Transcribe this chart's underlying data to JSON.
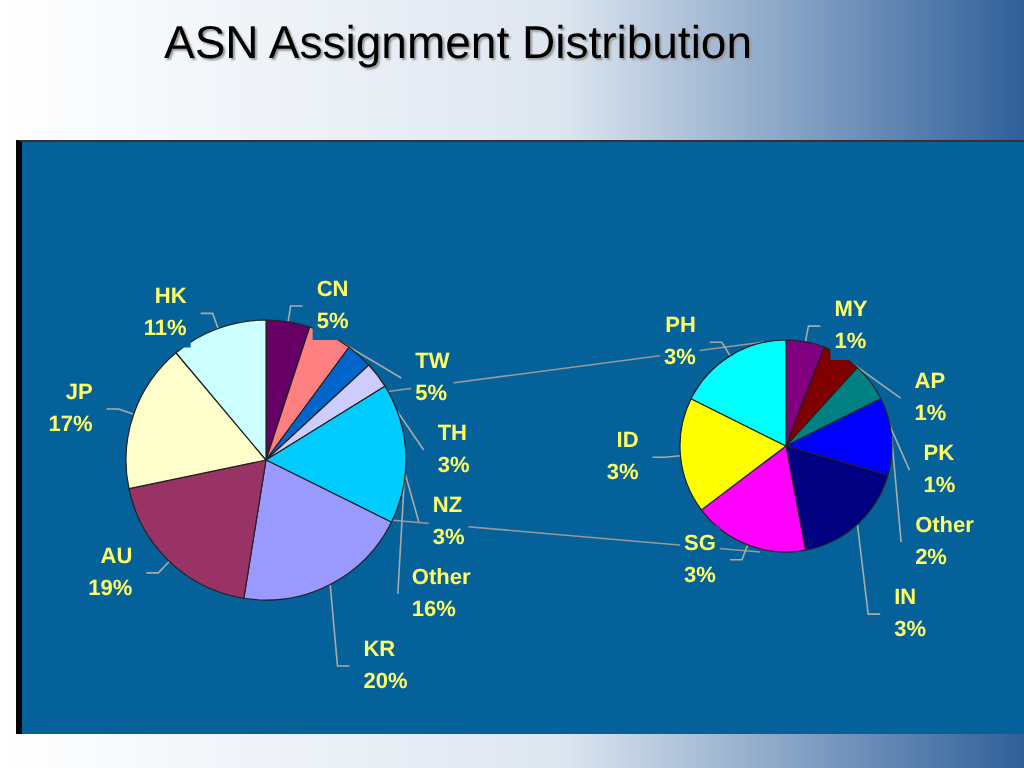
{
  "chart_data": [
    {
      "type": "pie",
      "title": "ASN Assignment Distribution",
      "categories": [
        "CN",
        "TW",
        "TH",
        "NZ",
        "Other",
        "KR",
        "AU",
        "JP",
        "HK"
      ],
      "values": [
        5,
        5,
        3,
        3,
        16,
        20,
        19,
        17,
        11
      ],
      "value_labels": [
        "5%",
        "5%",
        "3%",
        "3%",
        "16%",
        "20%",
        "19%",
        "17%",
        "11%"
      ],
      "colors": [
        "#660066",
        "#ff8080",
        "#0066cc",
        "#ccccff",
        "#00ccff",
        "#9999ff",
        "#993366",
        "#ffffcc",
        "#ccffff"
      ],
      "legend": false
    },
    {
      "type": "pie",
      "categories": [
        "MY",
        "AP",
        "PK",
        "Other",
        "IN",
        "SG",
        "ID",
        "PH"
      ],
      "values": [
        1,
        1,
        1,
        2,
        3,
        3,
        3,
        3
      ],
      "value_labels": [
        "1%",
        "1%",
        "1%",
        "2%",
        "3%",
        "3%",
        "3%",
        "3%"
      ],
      "colors": [
        "#800080",
        "#800000",
        "#008080",
        "#0000ff",
        "#000080",
        "#ff00ff",
        "#ffff00",
        "#00ffff"
      ],
      "legend": false
    }
  ]
}
